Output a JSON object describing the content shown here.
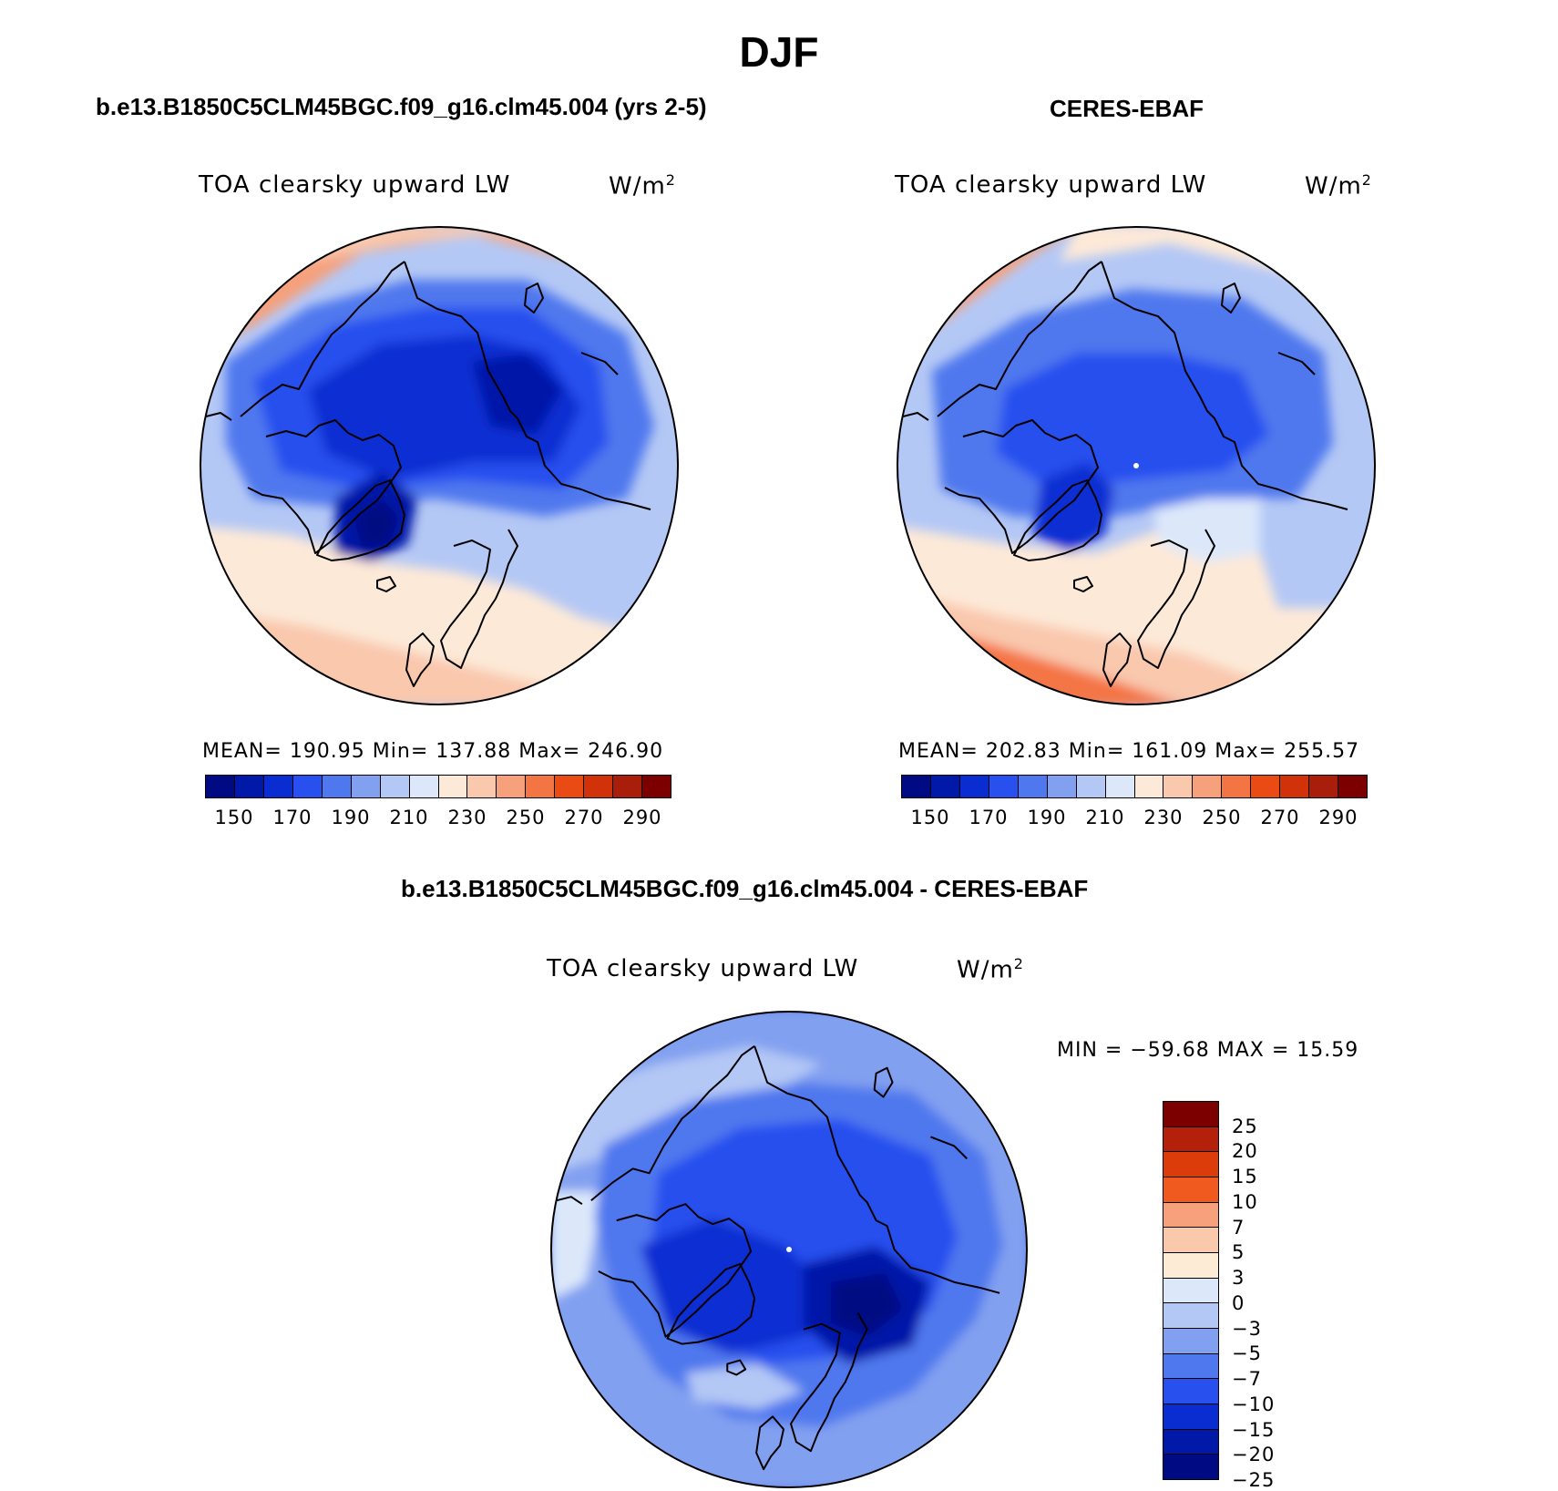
{
  "title": "DJF",
  "panels": {
    "model": {
      "title": "b.e13.B1850C5CLM45BGC.f09_g16.clm45.004 (yrs 2-5)",
      "variable": "TOA clearsky upward LW",
      "units": "W/m",
      "units_exp": "2",
      "stats": "MEAN= 190.95   Min= 137.88   Max= 246.90"
    },
    "obs": {
      "title": "CERES-EBAF",
      "variable": "TOA clearsky upward LW",
      "units": "W/m",
      "units_exp": "2",
      "stats": "MEAN= 202.83   Min= 161.09   Max= 255.57"
    },
    "diff": {
      "title": "b.e13.B1850C5CLM45BGC.f09_g16.clm45.004 - CERES-EBAF",
      "variable": "TOA clearsky upward LW",
      "units": "W/m",
      "units_exp": "2",
      "minmax": "MIN = −59.68  MAX =   15.59"
    }
  },
  "colorbar_abs": {
    "ticks": [
      "150",
      "170",
      "190",
      "210",
      "230",
      "250",
      "270",
      "290"
    ],
    "colors": [
      "#000a82",
      "#0019a8",
      "#0a2dd2",
      "#2850ee",
      "#5078ee",
      "#82a0f0",
      "#b4c8f5",
      "#dce8fa",
      "#fde9d8",
      "#f9c8ad",
      "#f6a07c",
      "#f47544",
      "#ea4b14",
      "#d2320a",
      "#a81e0a",
      "#7d0000"
    ]
  },
  "colorbar_diff": {
    "ticks": [
      "25",
      "20",
      "15",
      "10",
      "7",
      "5",
      "3",
      "0",
      "−3",
      "−5",
      "−7",
      "−10",
      "−15",
      "−20",
      "−25"
    ],
    "colors": [
      "#7d0000",
      "#b4200a",
      "#dc3c0a",
      "#f05a1e",
      "#f6a07c",
      "#fac8aa",
      "#fdebd6",
      "#dce8fa",
      "#b4c8f5",
      "#82a0f0",
      "#5078ee",
      "#2850ee",
      "#0a2dd2",
      "#0019a8",
      "#000a82"
    ]
  }
}
